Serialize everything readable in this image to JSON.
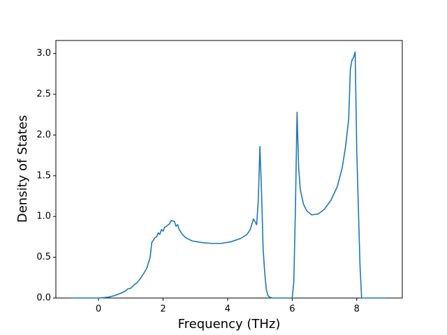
{
  "chart_data": {
    "type": "line",
    "x_label": "Frequency (THz)",
    "y_label": "Density of States",
    "x": [
      -0.85,
      0,
      0.3,
      0.5,
      0.7,
      0.85,
      0.9,
      1.0,
      1.1,
      1.2,
      1.3,
      1.4,
      1.5,
      1.6,
      1.65,
      1.75,
      1.8,
      1.85,
      1.9,
      1.95,
      2.0,
      2.05,
      2.1,
      2.2,
      2.25,
      2.35,
      2.4,
      2.45,
      2.5,
      2.6,
      2.7,
      2.9,
      3.2,
      3.5,
      3.8,
      4.1,
      4.4,
      4.6,
      4.7,
      4.8,
      4.9,
      4.95,
      5.0,
      5.05,
      5.1,
      5.15,
      5.2,
      5.25,
      5.3,
      5.4,
      6.0,
      6.05,
      6.1,
      6.15,
      6.2,
      6.25,
      6.35,
      6.45,
      6.6,
      6.8,
      7.0,
      7.2,
      7.4,
      7.55,
      7.65,
      7.75,
      7.8,
      7.85,
      7.9,
      7.95,
      8.0,
      8.1,
      8.15,
      8.9
    ],
    "series": [
      {
        "color": "#1f77b4",
        "values": [
          0,
          0,
          0.01,
          0.03,
          0.06,
          0.09,
          0.11,
          0.12,
          0.16,
          0.19,
          0.24,
          0.3,
          0.37,
          0.5,
          0.68,
          0.74,
          0.75,
          0.8,
          0.78,
          0.84,
          0.82,
          0.87,
          0.88,
          0.91,
          0.95,
          0.94,
          0.88,
          0.9,
          0.84,
          0.78,
          0.74,
          0.7,
          0.68,
          0.67,
          0.67,
          0.69,
          0.73,
          0.78,
          0.84,
          0.97,
          0.9,
          1.2,
          1.86,
          1.3,
          0.6,
          0.3,
          0.1,
          0.03,
          0.01,
          0,
          0,
          0.2,
          1.1,
          2.28,
          1.6,
          1.33,
          1.15,
          1.07,
          1.02,
          1.03,
          1.09,
          1.2,
          1.37,
          1.6,
          1.85,
          2.2,
          2.8,
          2.92,
          2.95,
          3.02,
          1.8,
          0.4,
          0,
          0
        ]
      }
    ],
    "xlim": [
      -1.32,
      9.41
    ],
    "ylim": [
      0,
      3.16
    ],
    "xticks": [
      0,
      2,
      4,
      6,
      8
    ],
    "yticks": [
      {
        "value": 0,
        "label": "0.0"
      },
      {
        "value": 0.5,
        "label": "0.5"
      },
      {
        "value": 1,
        "label": "1.0"
      },
      {
        "value": 1.5,
        "label": "1.5"
      },
      {
        "value": 2,
        "label": "2.0"
      },
      {
        "value": 2.5,
        "label": "2.5"
      },
      {
        "value": 3,
        "label": "3.0"
      }
    ]
  }
}
